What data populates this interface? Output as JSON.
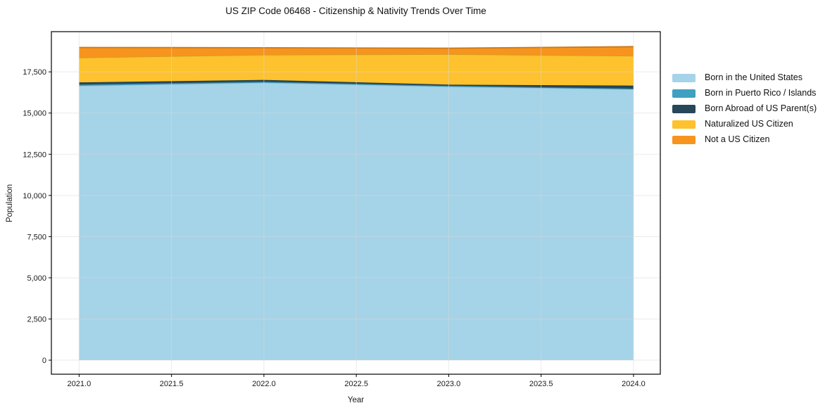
{
  "chart_data": {
    "type": "area",
    "stacked": true,
    "title": "US ZIP Code 06468 - Citizenship & Nativity Trends Over Time",
    "xlabel": "Year",
    "ylabel": "Population",
    "x": [
      2021,
      2022,
      2023,
      2024
    ],
    "series": [
      {
        "name": "Born in the United States",
        "color": "#A5D3E8",
        "values": [
          16650,
          16840,
          16600,
          16440
        ]
      },
      {
        "name": "Born in Puerto Rico / Islands",
        "color": "#3FA0C1",
        "values": [
          85,
          65,
          65,
          45
        ]
      },
      {
        "name": "Born Abroad of US Parent(s)",
        "color": "#27475A",
        "values": [
          125,
          105,
          60,
          180
        ]
      },
      {
        "name": "Naturalized US Citizen",
        "color": "#FDC22D",
        "values": [
          1510,
          1530,
          1850,
          1810
        ]
      },
      {
        "name": "Not a US Citizen",
        "color": "#F7941E",
        "values": [
          610,
          425,
          360,
          555
        ]
      }
    ],
    "xlim": [
      2020.85,
      2024.145
    ],
    "ylim": [
      -852,
      19941
    ],
    "xticks": {
      "values": [
        2021.0,
        2021.5,
        2022.0,
        2022.5,
        2023.0,
        2023.5,
        2024.0
      ],
      "labels": [
        "2021.0",
        "2021.5",
        "2022.0",
        "2022.5",
        "2023.0",
        "2023.5",
        "2024.0"
      ]
    },
    "yticks": {
      "values": [
        0,
        2500,
        5000,
        7500,
        10000,
        12500,
        15000,
        17500
      ],
      "labels": [
        "0",
        "2,500",
        "5,000",
        "7,500",
        "10,000",
        "12,500",
        "15,000",
        "17,500"
      ]
    },
    "grid": true,
    "grid_color": "#d8d8d8",
    "spine_color": "#000000",
    "tick_label_color": "#1a1a1a",
    "legend_position": "outside center right"
  }
}
